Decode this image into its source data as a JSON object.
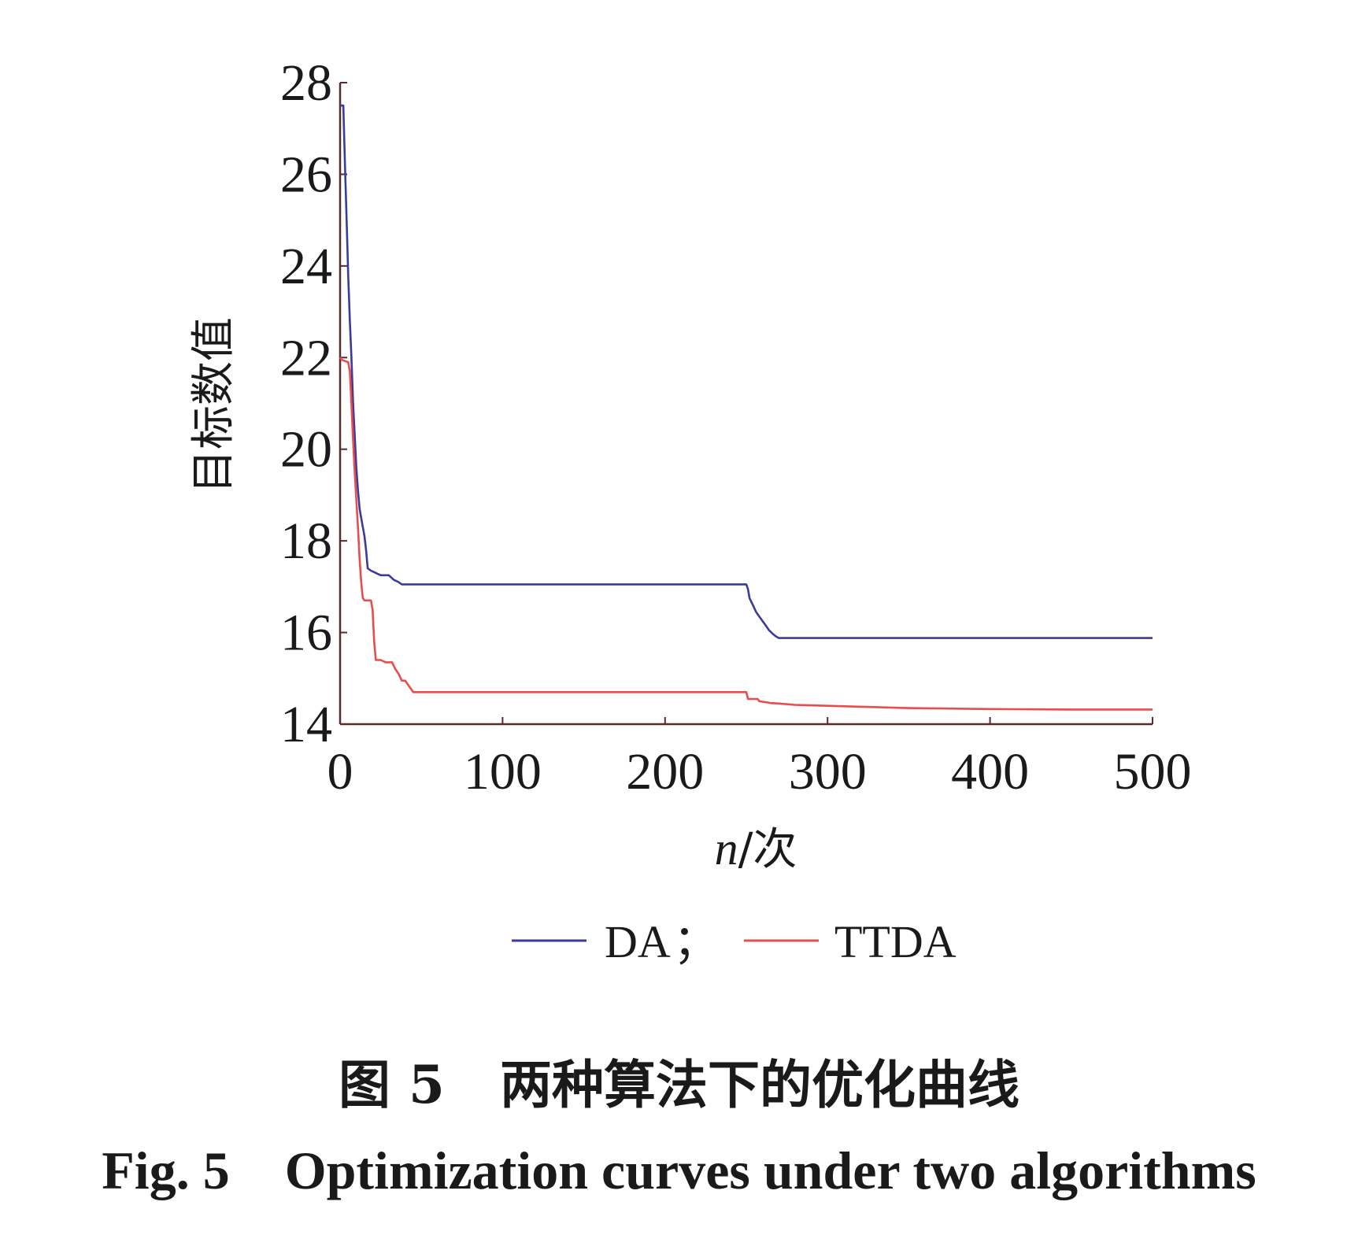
{
  "chart_data": {
    "type": "line",
    "xlabel_italic": "n",
    "xlabel_rest": "/次",
    "ylabel": "目标数值",
    "xlim": [
      0,
      500
    ],
    "ylim": [
      14,
      28
    ],
    "xticks": [
      "0",
      "100",
      "200",
      "300",
      "400",
      "500"
    ],
    "yticks": [
      "14",
      "16",
      "18",
      "20",
      "22",
      "24",
      "26",
      "28"
    ],
    "legend": {
      "placement": "bottom",
      "separator": "；"
    },
    "series": [
      {
        "name": "DA",
        "color": "#3b3b9b",
        "x": [
          0,
          2,
          3,
          4,
          5,
          6,
          7,
          8,
          9,
          10,
          11,
          12,
          13,
          14,
          15,
          16,
          17,
          19,
          22,
          25,
          30,
          33,
          36,
          38,
          40,
          50,
          100,
          150,
          200,
          248,
          250,
          251,
          252,
          254,
          256,
          258,
          260,
          262,
          264,
          266,
          268,
          270,
          272,
          275,
          280,
          300,
          350,
          400,
          450,
          500
        ],
        "y": [
          27.5,
          27.5,
          26.2,
          25.0,
          23.8,
          22.8,
          22.0,
          21.0,
          20.3,
          19.6,
          19.1,
          18.7,
          18.5,
          18.3,
          18.1,
          17.8,
          17.4,
          17.35,
          17.3,
          17.25,
          17.25,
          17.15,
          17.1,
          17.05,
          17.05,
          17.05,
          17.05,
          17.05,
          17.05,
          17.05,
          17.05,
          16.95,
          16.75,
          16.6,
          16.45,
          16.35,
          16.25,
          16.15,
          16.05,
          15.98,
          15.92,
          15.88,
          15.88,
          15.88,
          15.88,
          15.88,
          15.88,
          15.88,
          15.88,
          15.88
        ]
      },
      {
        "name": "TTDA",
        "color": "#e84c4c",
        "x": [
          0,
          1,
          5,
          6,
          7,
          8,
          9,
          10,
          11,
          12,
          13,
          14,
          15,
          17,
          19,
          20,
          21,
          22,
          25,
          28,
          32,
          34,
          36,
          38,
          40,
          42,
          45,
          50,
          100,
          150,
          200,
          250,
          251,
          252,
          257,
          258,
          262,
          265,
          270,
          280,
          300,
          350,
          400,
          450,
          500
        ],
        "y": [
          22.0,
          21.95,
          21.9,
          21.7,
          21.0,
          20.2,
          19.5,
          18.9,
          18.3,
          17.6,
          17.1,
          16.75,
          16.7,
          16.7,
          16.7,
          16.5,
          15.8,
          15.4,
          15.4,
          15.35,
          15.35,
          15.2,
          15.1,
          14.95,
          14.95,
          14.85,
          14.7,
          14.7,
          14.7,
          14.7,
          14.7,
          14.7,
          14.55,
          14.55,
          14.55,
          14.5,
          14.48,
          14.46,
          14.45,
          14.42,
          14.4,
          14.35,
          14.33,
          14.32,
          14.32
        ]
      }
    ]
  },
  "caption_zh": {
    "label": "图 5",
    "text": "两种算法下的优化曲线"
  },
  "caption_en": {
    "label": "Fig. 5",
    "text": "Optimization curves under two algorithms"
  }
}
